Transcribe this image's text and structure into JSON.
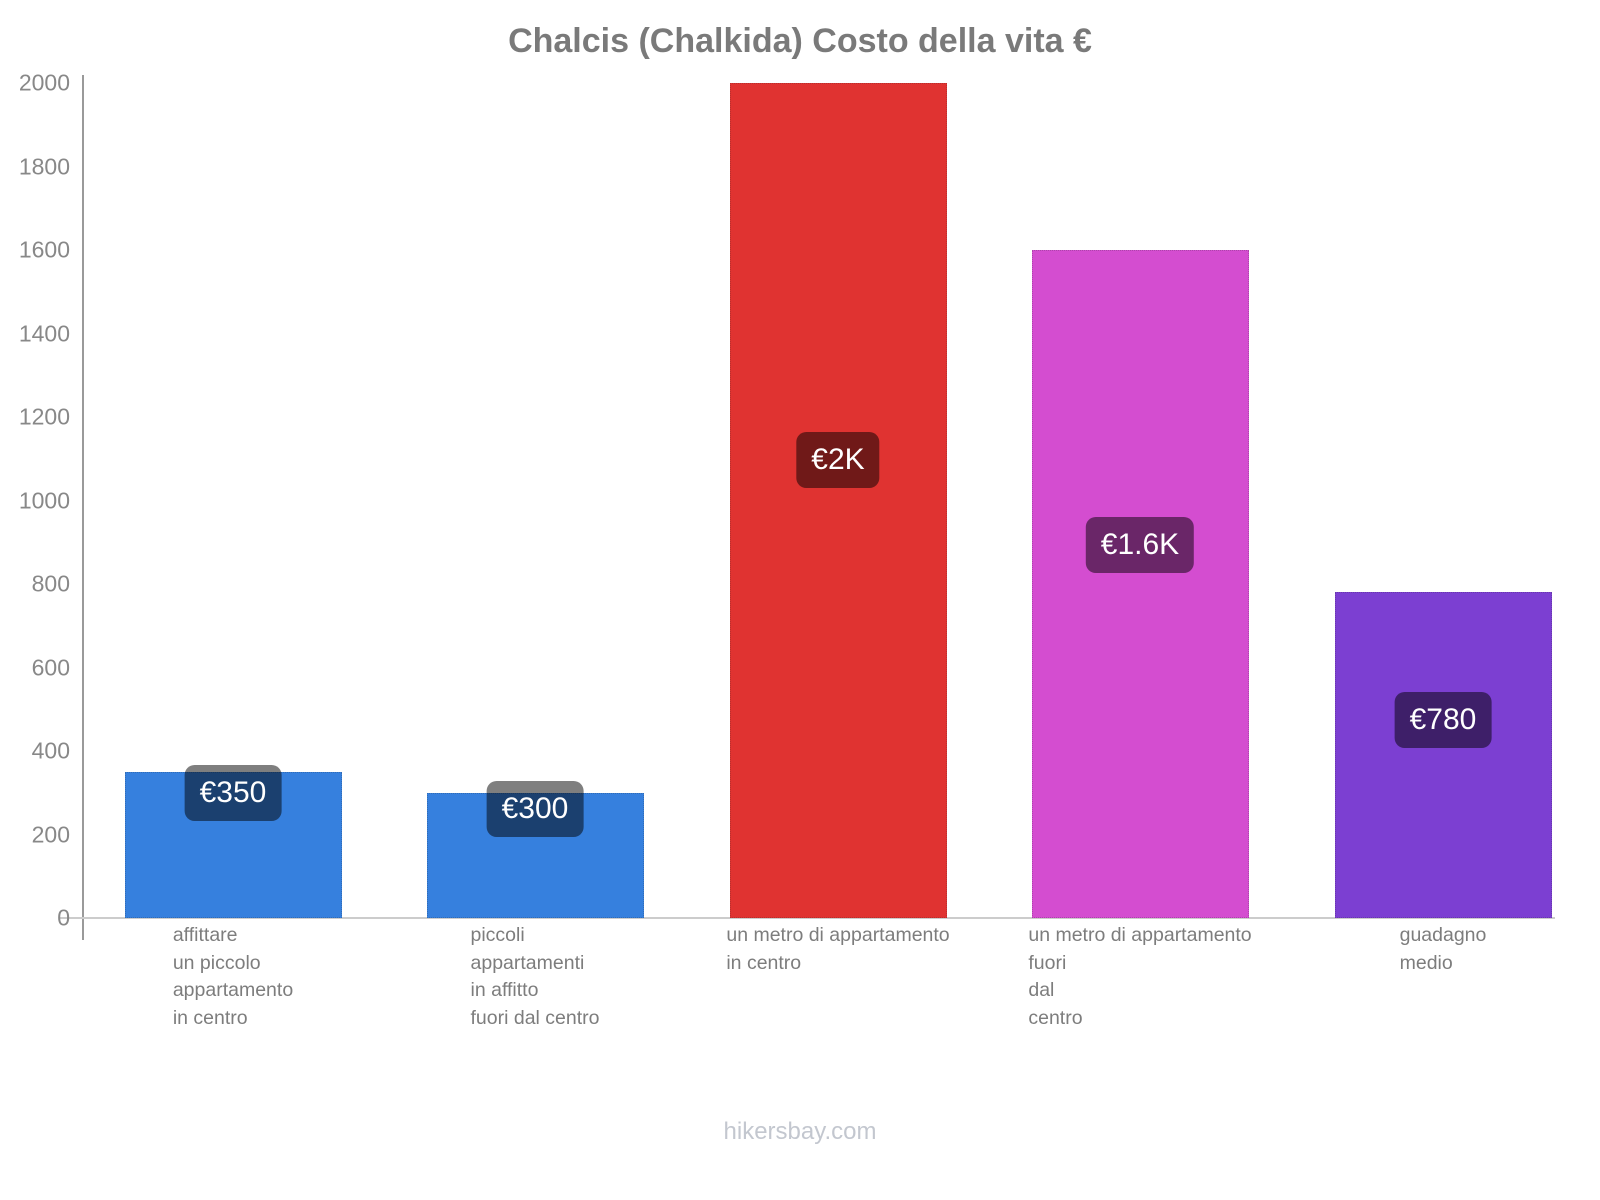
{
  "title": "Chalcis (Chalkida) Costo della vita €",
  "footer": "hikersbay.com",
  "colors": {
    "axis_line": "#9a9a9a",
    "baseline": "#cccccc",
    "title_text": "#7a7a7a",
    "tick_text": "#888888",
    "category_text": "#7d7d7d",
    "footer_text": "#c3c7cf",
    "badge_bg": "rgba(0,0,0,0.5)",
    "badge_text": "#ffffff",
    "bar_blue": "#3680DE",
    "bar_red": "#E03331",
    "bar_magenta": "#D44DD0",
    "bar_purple": "#7C3FD2"
  },
  "chart_data": {
    "type": "bar",
    "title": "Chalcis (Chalkida) Costo della vita €",
    "xlabel": "",
    "ylabel": "",
    "ylim": [
      0,
      2000
    ],
    "yticks": [
      0,
      200,
      400,
      600,
      800,
      1000,
      1200,
      1400,
      1600,
      1800,
      2000
    ],
    "grid": false,
    "legend": false,
    "categories": [
      [
        "affittare",
        "un piccolo",
        "appartamento",
        "in centro"
      ],
      [
        "piccoli",
        "appartamenti",
        "in affitto",
        "fuori dal centro"
      ],
      [
        "un metro di appartamento",
        "in centro"
      ],
      [
        "un metro di appartamento",
        "fuori",
        "dal",
        "centro"
      ],
      [
        "guadagno",
        "medio"
      ]
    ],
    "values": [
      350,
      300,
      2000,
      1600,
      780
    ],
    "value_labels": [
      "€350",
      "€300",
      "€2K",
      "€1.6K",
      "€780"
    ],
    "bar_colors": [
      "#3680DE",
      "#3680DE",
      "#E03331",
      "#D44DD0",
      "#7C3FD2"
    ]
  }
}
